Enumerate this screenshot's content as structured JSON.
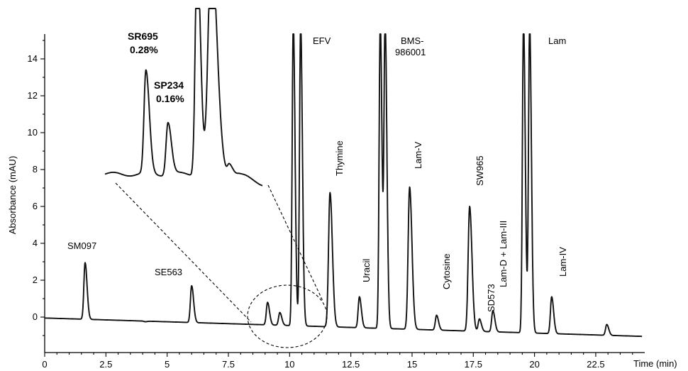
{
  "chart_data": {
    "type": "line",
    "title": "",
    "xlabel": "Time (min)",
    "ylabel": "Absorbance (mAU)",
    "xlim": [
      0,
      24.5
    ],
    "ylim": [
      -1.8,
      15
    ],
    "xticks": [
      0,
      2.5,
      5,
      7.5,
      10,
      12.5,
      15,
      17.5,
      20,
      22.5
    ],
    "xtick_labels": [
      "0",
      "2.5",
      "5",
      "7.5",
      "10",
      "12.5",
      "15",
      "17.5",
      "20",
      "22.5"
    ],
    "yticks": [
      0,
      2,
      4,
      6,
      8,
      10,
      12,
      14
    ],
    "ytick_labels": [
      "0",
      "2",
      "4",
      "6",
      "8",
      "10",
      "12",
      "14"
    ],
    "baseline": {
      "start": -0.05,
      "end": -1.05
    },
    "peaks": [
      {
        "label": "SM097",
        "rt": 1.65,
        "height": 2.95
      },
      {
        "label": "",
        "rt": 4.1,
        "height": -0.25
      },
      {
        "label": "SE563",
        "rt": 6.0,
        "height": 1.7
      },
      {
        "label": "",
        "rt": 9.1,
        "height": 0.8
      },
      {
        "label": "",
        "rt": 9.6,
        "height": 0.25
      },
      {
        "label": "EFV",
        "rt": 10.15,
        "height": 16
      },
      {
        "label": "",
        "rt": 10.45,
        "height": 16
      },
      {
        "label": "Thymine",
        "rt": 11.65,
        "height": 6.75
      },
      {
        "label": "Uracil",
        "rt": 12.85,
        "height": 1.1
      },
      {
        "label": "BMS-986001",
        "rt": 13.7,
        "height": 16
      },
      {
        "label": "",
        "rt": 13.9,
        "height": 16
      },
      {
        "label": "Lam-V",
        "rt": 14.9,
        "height": 7.05
      },
      {
        "label": "Cytosine",
        "rt": 16.0,
        "height": 0.1
      },
      {
        "label": "SW965",
        "rt": 17.35,
        "height": 6.0
      },
      {
        "label": "SD573",
        "rt": 17.75,
        "height": -0.1
      },
      {
        "label": "Lam-D + Lam-III",
        "rt": 18.3,
        "height": 0.35
      },
      {
        "label": "Lam",
        "rt": 19.55,
        "height": 16
      },
      {
        "label": "",
        "rt": 19.8,
        "height": 16
      },
      {
        "label": "Lam-IV",
        "rt": 20.7,
        "height": 1.1
      },
      {
        "label": "",
        "rt": 22.95,
        "height": -0.4
      }
    ],
    "inset": {
      "zoom_of": "dashed ellipse around 9–11 min",
      "baseline": 7.75,
      "peaks": [
        {
          "label": "SR695",
          "pct": "0.28%",
          "height": 13.3
        },
        {
          "label": "SP234",
          "pct": "0.16%",
          "height": 10.6
        }
      ]
    }
  }
}
